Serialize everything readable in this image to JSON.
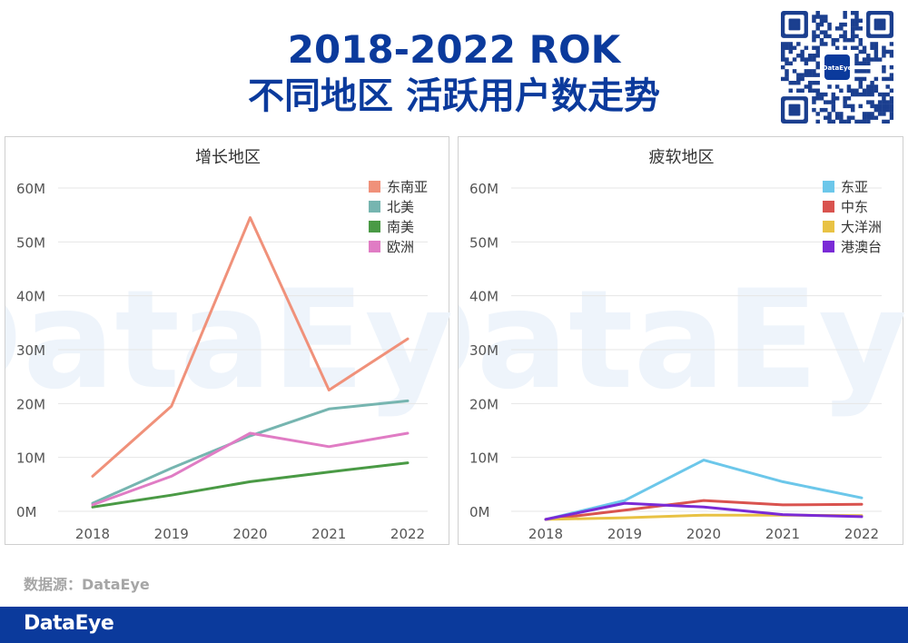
{
  "header": {
    "title_line1": "2018-2022 ROK",
    "title_line2": "不同地区 活跃用户数走势"
  },
  "source_label": "数据源：DataEye",
  "footer_logo": "DataEye",
  "qr_logo": "DataEye",
  "watermark": "DataEye",
  "chart_data": [
    {
      "type": "line",
      "title": "增长地区",
      "categories": [
        "2018",
        "2019",
        "2020",
        "2021",
        "2022"
      ],
      "y_ticks": [
        "0M",
        "10M",
        "20M",
        "30M",
        "40M",
        "50M",
        "60M"
      ],
      "ylim": [
        0,
        60
      ],
      "grid": true,
      "legend": "top-right",
      "series": [
        {
          "name": "东南亚",
          "color": "#f0917a",
          "values": [
            6.5,
            19.5,
            54.5,
            22.5,
            32
          ]
        },
        {
          "name": "北美",
          "color": "#76b5b0",
          "values": [
            1.5,
            8,
            14,
            19,
            20.5
          ]
        },
        {
          "name": "南美",
          "color": "#4a9a45",
          "values": [
            0.8,
            3,
            5.5,
            7.3,
            9
          ]
        },
        {
          "name": "欧洲",
          "color": "#e07cc4",
          "values": [
            1.2,
            6.5,
            14.5,
            12,
            14.5
          ]
        }
      ]
    },
    {
      "type": "line",
      "title": "疲软地区",
      "categories": [
        "2018",
        "2019",
        "2020",
        "2021",
        "2022"
      ],
      "y_ticks": [
        "0M",
        "10M",
        "20M",
        "30M",
        "40M",
        "50M",
        "60M"
      ],
      "ylim": [
        0,
        60
      ],
      "grid": true,
      "legend": "top-right",
      "series": [
        {
          "name": "东亚",
          "color": "#6cc7ea",
          "values": [
            -1.5,
            2,
            9.5,
            5.5,
            2.5
          ]
        },
        {
          "name": "中东",
          "color": "#d9534f",
          "values": [
            -1.5,
            0.2,
            2,
            1.2,
            1.3
          ]
        },
        {
          "name": "大洋洲",
          "color": "#e8c244",
          "values": [
            -1.5,
            -1.2,
            -0.7,
            -0.7,
            -0.8
          ]
        },
        {
          "name": "港澳台",
          "color": "#7a2ad6",
          "values": [
            -1.5,
            1.5,
            0.8,
            -0.6,
            -1
          ]
        }
      ]
    }
  ]
}
